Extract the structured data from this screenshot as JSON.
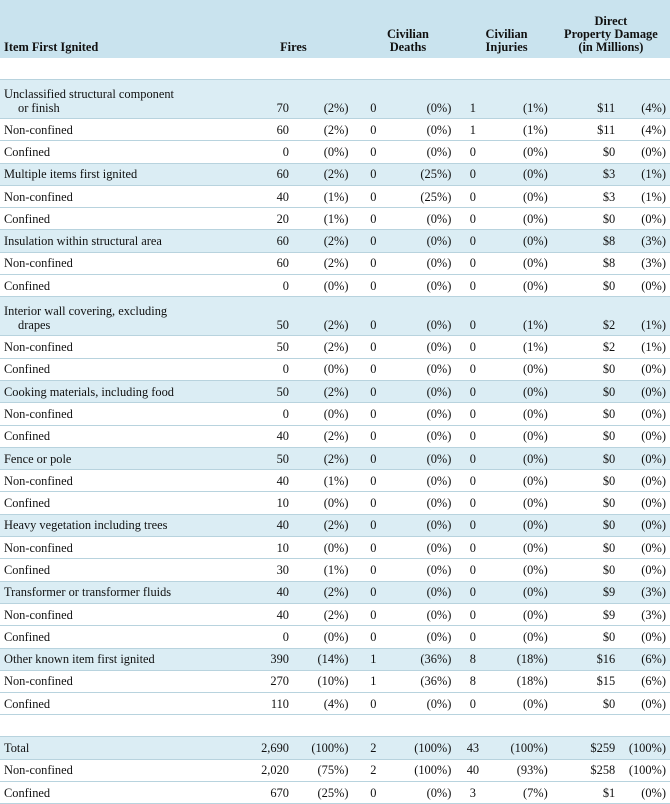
{
  "headers": {
    "item": "Item First Ignited",
    "fires": "Fires",
    "deaths": "Civilian Deaths",
    "injuries": "Civilian Injuries",
    "damage_l1": "Direct",
    "damage_l2": "Property Damage",
    "damage_l3": "(in Millions)"
  },
  "rows": [
    {
      "type": "group",
      "label": "Unclassified structural component",
      "label2": "or finish",
      "fires": "70",
      "fires_pct": "(2%)",
      "deaths": "0",
      "deaths_pct": "(0%)",
      "injuries": "1",
      "injuries_pct": "(1%)",
      "damage": "$11",
      "damage_pct": "(4%)"
    },
    {
      "type": "sub",
      "label": "Non-confined",
      "fires": "60",
      "fires_pct": "(2%)",
      "deaths": "0",
      "deaths_pct": "(0%)",
      "injuries": "1",
      "injuries_pct": "(1%)",
      "damage": "$11",
      "damage_pct": "(4%)"
    },
    {
      "type": "sub",
      "label": "Confined",
      "fires": "0",
      "fires_pct": "(0%)",
      "deaths": "0",
      "deaths_pct": "(0%)",
      "injuries": "0",
      "injuries_pct": "(0%)",
      "damage": "$0",
      "damage_pct": "(0%)"
    },
    {
      "type": "group",
      "label": "Multiple items first ignited",
      "fires": "60",
      "fires_pct": "(2%)",
      "deaths": "0",
      "deaths_pct": "(25%)",
      "injuries": "0",
      "injuries_pct": "(0%)",
      "damage": "$3",
      "damage_pct": "(1%)"
    },
    {
      "type": "sub",
      "label": "Non-confined",
      "fires": "40",
      "fires_pct": "(1%)",
      "deaths": "0",
      "deaths_pct": "(25%)",
      "injuries": "0",
      "injuries_pct": "(0%)",
      "damage": "$3",
      "damage_pct": "(1%)"
    },
    {
      "type": "sub",
      "label": "Confined",
      "fires": "20",
      "fires_pct": "(1%)",
      "deaths": "0",
      "deaths_pct": "(0%)",
      "injuries": "0",
      "injuries_pct": "(0%)",
      "damage": "$0",
      "damage_pct": "(0%)"
    },
    {
      "type": "group",
      "label": "Insulation within structural area",
      "fires": "60",
      "fires_pct": "(2%)",
      "deaths": "0",
      "deaths_pct": "(0%)",
      "injuries": "0",
      "injuries_pct": "(0%)",
      "damage": "$8",
      "damage_pct": "(3%)"
    },
    {
      "type": "sub",
      "label": "Non-confined",
      "fires": "60",
      "fires_pct": "(2%)",
      "deaths": "0",
      "deaths_pct": "(0%)",
      "injuries": "0",
      "injuries_pct": "(0%)",
      "damage": "$8",
      "damage_pct": "(3%)"
    },
    {
      "type": "sub",
      "label": "Confined",
      "fires": "0",
      "fires_pct": "(0%)",
      "deaths": "0",
      "deaths_pct": "(0%)",
      "injuries": "0",
      "injuries_pct": "(0%)",
      "damage": "$0",
      "damage_pct": "(0%)"
    },
    {
      "type": "group",
      "label": "Interior wall covering, excluding",
      "label2": "drapes",
      "fires": "50",
      "fires_pct": "(2%)",
      "deaths": "0",
      "deaths_pct": "(0%)",
      "injuries": "0",
      "injuries_pct": "(1%)",
      "damage": "$2",
      "damage_pct": "(1%)"
    },
    {
      "type": "sub",
      "label": "Non-confined",
      "fires": "50",
      "fires_pct": "(2%)",
      "deaths": "0",
      "deaths_pct": "(0%)",
      "injuries": "0",
      "injuries_pct": "(1%)",
      "damage": "$2",
      "damage_pct": "(1%)"
    },
    {
      "type": "sub",
      "label": "Confined",
      "fires": "0",
      "fires_pct": "(0%)",
      "deaths": "0",
      "deaths_pct": "(0%)",
      "injuries": "0",
      "injuries_pct": "(0%)",
      "damage": "$0",
      "damage_pct": "(0%)"
    },
    {
      "type": "group",
      "label": "Cooking materials, including food",
      "fires": "50",
      "fires_pct": "(2%)",
      "deaths": "0",
      "deaths_pct": "(0%)",
      "injuries": "0",
      "injuries_pct": "(0%)",
      "damage": "$0",
      "damage_pct": "(0%)"
    },
    {
      "type": "sub",
      "label": "Non-confined",
      "fires": "0",
      "fires_pct": "(0%)",
      "deaths": "0",
      "deaths_pct": "(0%)",
      "injuries": "0",
      "injuries_pct": "(0%)",
      "damage": "$0",
      "damage_pct": "(0%)"
    },
    {
      "type": "sub",
      "label": "Confined",
      "fires": "40",
      "fires_pct": "(2%)",
      "deaths": "0",
      "deaths_pct": "(0%)",
      "injuries": "0",
      "injuries_pct": "(0%)",
      "damage": "$0",
      "damage_pct": "(0%)"
    },
    {
      "type": "group",
      "label": "Fence or pole",
      "fires": "50",
      "fires_pct": "(2%)",
      "deaths": "0",
      "deaths_pct": "(0%)",
      "injuries": "0",
      "injuries_pct": "(0%)",
      "damage": "$0",
      "damage_pct": "(0%)"
    },
    {
      "type": "sub",
      "label": "Non-confined",
      "fires": "40",
      "fires_pct": "(1%)",
      "deaths": "0",
      "deaths_pct": "(0%)",
      "injuries": "0",
      "injuries_pct": "(0%)",
      "damage": "$0",
      "damage_pct": "(0%)"
    },
    {
      "type": "sub",
      "label": "Confined",
      "fires": "10",
      "fires_pct": "(0%)",
      "deaths": "0",
      "deaths_pct": "(0%)",
      "injuries": "0",
      "injuries_pct": "(0%)",
      "damage": "$0",
      "damage_pct": "(0%)"
    },
    {
      "type": "group",
      "label": "Heavy vegetation including trees",
      "fires": "40",
      "fires_pct": "(2%)",
      "deaths": "0",
      "deaths_pct": "(0%)",
      "injuries": "0",
      "injuries_pct": "(0%)",
      "damage": "$0",
      "damage_pct": "(0%)"
    },
    {
      "type": "sub",
      "label": "Non-confined",
      "fires": "10",
      "fires_pct": "(0%)",
      "deaths": "0",
      "deaths_pct": "(0%)",
      "injuries": "0",
      "injuries_pct": "(0%)",
      "damage": "$0",
      "damage_pct": "(0%)"
    },
    {
      "type": "sub",
      "label": "Confined",
      "fires": "30",
      "fires_pct": "(1%)",
      "deaths": "0",
      "deaths_pct": "(0%)",
      "injuries": "0",
      "injuries_pct": "(0%)",
      "damage": "$0",
      "damage_pct": "(0%)"
    },
    {
      "type": "group",
      "label": "Transformer or transformer fluids",
      "fires": "40",
      "fires_pct": "(2%)",
      "deaths": "0",
      "deaths_pct": "(0%)",
      "injuries": "0",
      "injuries_pct": "(0%)",
      "damage": "$9",
      "damage_pct": "(3%)"
    },
    {
      "type": "sub",
      "label": "Non-confined",
      "fires": "40",
      "fires_pct": "(2%)",
      "deaths": "0",
      "deaths_pct": "(0%)",
      "injuries": "0",
      "injuries_pct": "(0%)",
      "damage": "$9",
      "damage_pct": "(3%)"
    },
    {
      "type": "sub",
      "label": "Confined",
      "fires": "0",
      "fires_pct": "(0%)",
      "deaths": "0",
      "deaths_pct": "(0%)",
      "injuries": "0",
      "injuries_pct": "(0%)",
      "damage": "$0",
      "damage_pct": "(0%)"
    },
    {
      "type": "group",
      "label": "Other known item first ignited",
      "fires": "390",
      "fires_pct": "(14%)",
      "deaths": "1",
      "deaths_pct": "(36%)",
      "injuries": "8",
      "injuries_pct": "(18%)",
      "damage": "$16",
      "damage_pct": "(6%)"
    },
    {
      "type": "sub",
      "label": "Non-confined",
      "fires": "270",
      "fires_pct": "(10%)",
      "deaths": "1",
      "deaths_pct": "(36%)",
      "injuries": "8",
      "injuries_pct": "(18%)",
      "damage": "$15",
      "damage_pct": "(6%)"
    },
    {
      "type": "sub",
      "label": "Confined",
      "fires": "110",
      "fires_pct": "(4%)",
      "deaths": "0",
      "deaths_pct": "(0%)",
      "injuries": "0",
      "injuries_pct": "(0%)",
      "damage": "$0",
      "damage_pct": "(0%)"
    }
  ],
  "totals": [
    {
      "type": "total",
      "label": "Total",
      "fires": "2,690",
      "fires_pct": "(100%)",
      "deaths": "2",
      "deaths_pct": "(100%)",
      "injuries": "43",
      "injuries_pct": "(100%)",
      "damage": "$259",
      "damage_pct": "(100%)"
    },
    {
      "type": "sub",
      "label": "Non-confined",
      "fires": "2,020",
      "fires_pct": "(75%)",
      "deaths": "2",
      "deaths_pct": "(100%)",
      "injuries": "40",
      "injuries_pct": "(93%)",
      "damage": "$258",
      "damage_pct": "(100%)"
    },
    {
      "type": "sub",
      "label": "Confined",
      "fires": "670",
      "fires_pct": "(25%)",
      "deaths": "0",
      "deaths_pct": "(0%)",
      "injuries": "3",
      "injuries_pct": "(7%)",
      "damage": "$1",
      "damage_pct": "(0%)"
    }
  ]
}
